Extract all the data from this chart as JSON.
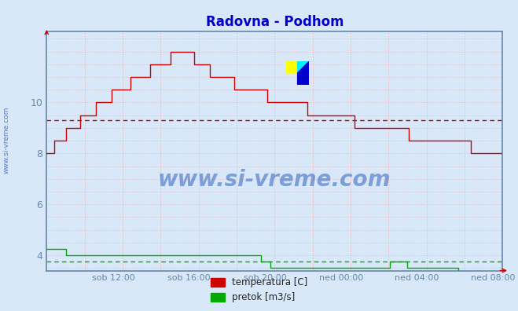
{
  "title": "Radovna - Podhom",
  "title_color": "#0000cc",
  "bg_color": "#d8e8f8",
  "plot_bg_color": "#d8e8f8",
  "axis_color": "#6688aa",
  "grid_color": "#e8b0b0",
  "ylabel_color": "#6688aa",
  "xlabel_color": "#6688aa",
  "ylim": [
    3.4,
    12.8
  ],
  "yticks": [
    4,
    6,
    8,
    10
  ],
  "xtick_labels": [
    "sob 12:00",
    "sob 16:00",
    "sob 20:00",
    "ned 00:00",
    "ned 04:00",
    "ned 08:00"
  ],
  "temp_color": "#cc0000",
  "flow_color": "#00aa00",
  "temp_avg": 9.3,
  "flow_avg": 3.75,
  "watermark_text": "www.si-vreme.com",
  "watermark_color": "#2255bb",
  "sidebar_text": "www.si-vreme.com",
  "legend_labels": [
    "temperatura [C]",
    "pretok [m3/s]"
  ]
}
